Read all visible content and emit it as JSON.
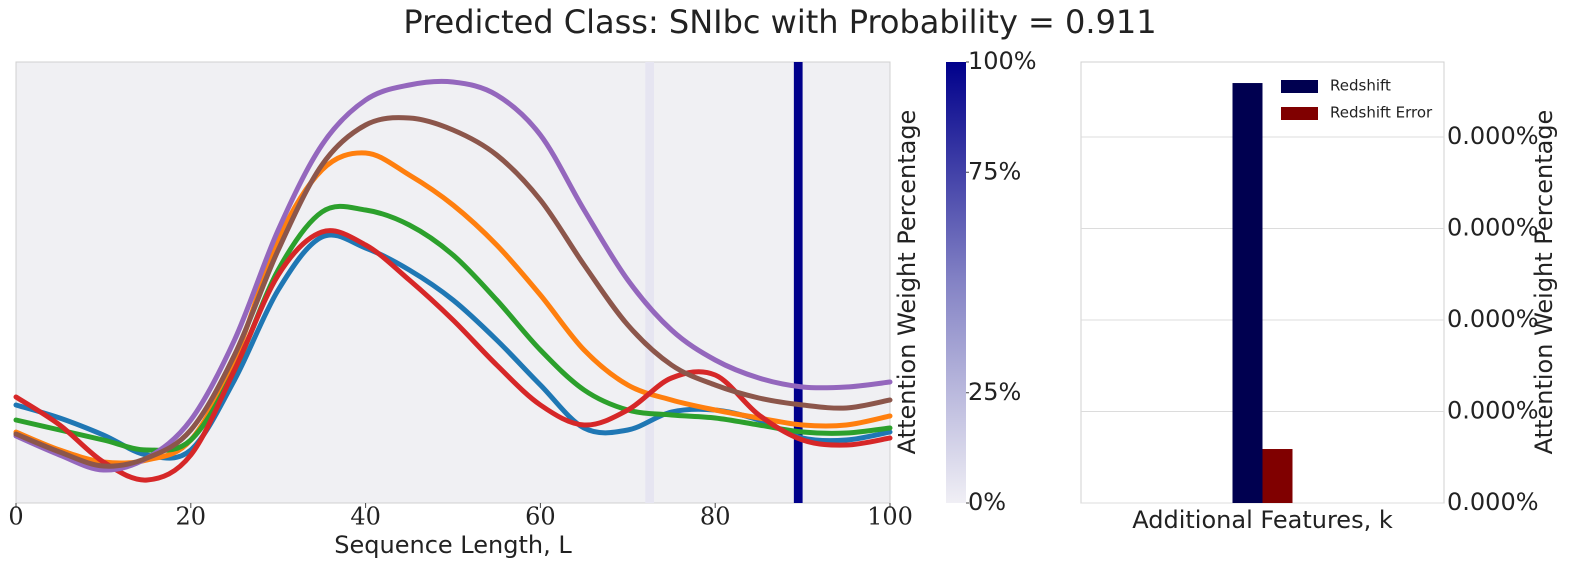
{
  "title": "Predicted Class: SNIbc with Probability = 0.911",
  "chart_data": [
    {
      "type": "line",
      "xlabel": "Sequence Length, L",
      "xlim": [
        0,
        100
      ],
      "xticks": [
        0,
        20,
        40,
        60,
        80,
        100
      ],
      "ylim": [
        0,
        441
      ],
      "x": [
        0,
        5,
        10,
        15,
        20,
        25,
        30,
        35,
        40,
        45,
        50,
        55,
        60,
        65,
        70,
        75,
        80,
        85,
        90,
        95,
        100
      ],
      "series": [
        {
          "color": "#1f77b4",
          "values": [
            98,
            85,
            68,
            48,
            53,
            123,
            213,
            266,
            255,
            233,
            203,
            163,
            118,
            75,
            73,
            91,
            93,
            83,
            65,
            63,
            71
          ]
        },
        {
          "color": "#ff7f0e",
          "values": [
            71,
            53,
            41,
            43,
            63,
            143,
            263,
            333,
            350,
            328,
            298,
            258,
            208,
            153,
            118,
            103,
            93,
            85,
            78,
            78,
            87
          ]
        },
        {
          "color": "#2ca02c",
          "values": [
            83,
            73,
            63,
            53,
            63,
            133,
            233,
            291,
            293,
            278,
            248,
            203,
            153,
            113,
            93,
            88,
            85,
            78,
            71,
            70,
            75
          ]
        },
        {
          "color": "#d62728",
          "values": [
            106,
            78,
            41,
            23,
            48,
            133,
            228,
            271,
            258,
            223,
            183,
            138,
            98,
            78,
            93,
            125,
            128,
            88,
            63,
            58,
            65
          ]
        },
        {
          "color": "#9467bd",
          "values": [
            67,
            48,
            33,
            45,
            83,
            163,
            273,
            358,
            403,
            418,
            421,
            408,
            368,
            293,
            223,
            173,
            143,
            125,
            116,
            116,
            121
          ]
        },
        {
          "color": "#8c564b",
          "values": [
            69,
            51,
            37,
            45,
            73,
            148,
            253,
            338,
            378,
            385,
            373,
            348,
            303,
            238,
            178,
            138,
            118,
            105,
            98,
            95,
            103
          ]
        }
      ],
      "attention": {
        "x": [
          72,
          89
        ],
        "values": [
          4,
          100
        ]
      }
    },
    {
      "type": "colorbar",
      "label": "Attention Weight Percentage",
      "ylim": [
        0,
        100
      ],
      "yticks": [
        {
          "value": 0,
          "label": "0%"
        },
        {
          "value": 25,
          "label": "25%"
        },
        {
          "value": 75,
          "label": "75%"
        },
        {
          "value": 100,
          "label": "100%"
        }
      ],
      "colors": [
        "#f0eff5",
        "#00008b"
      ]
    },
    {
      "type": "bar",
      "xlabel": "Additional Features, k",
      "ylabel": "Attention Weight Percentage",
      "categories": [
        null
      ],
      "ylim": [
        0,
        0.000482
      ],
      "grid": true,
      "legend": "upper right",
      "yticks": [
        {
          "value": 0,
          "label": "0.000%"
        },
        {
          "value": 0.0001,
          "label": "0.000%"
        },
        {
          "value": 0.0002,
          "label": "0.000%"
        },
        {
          "value": 0.0003,
          "label": "0.000%"
        },
        {
          "value": 0.0004,
          "label": "0.000%"
        }
      ],
      "series": [
        {
          "name": "Redshift",
          "color": "#000050",
          "values": [
            0.000459
          ]
        },
        {
          "name": "Redshift Error",
          "color": "#800000",
          "values": [
            5.9e-05
          ]
        }
      ]
    }
  ]
}
